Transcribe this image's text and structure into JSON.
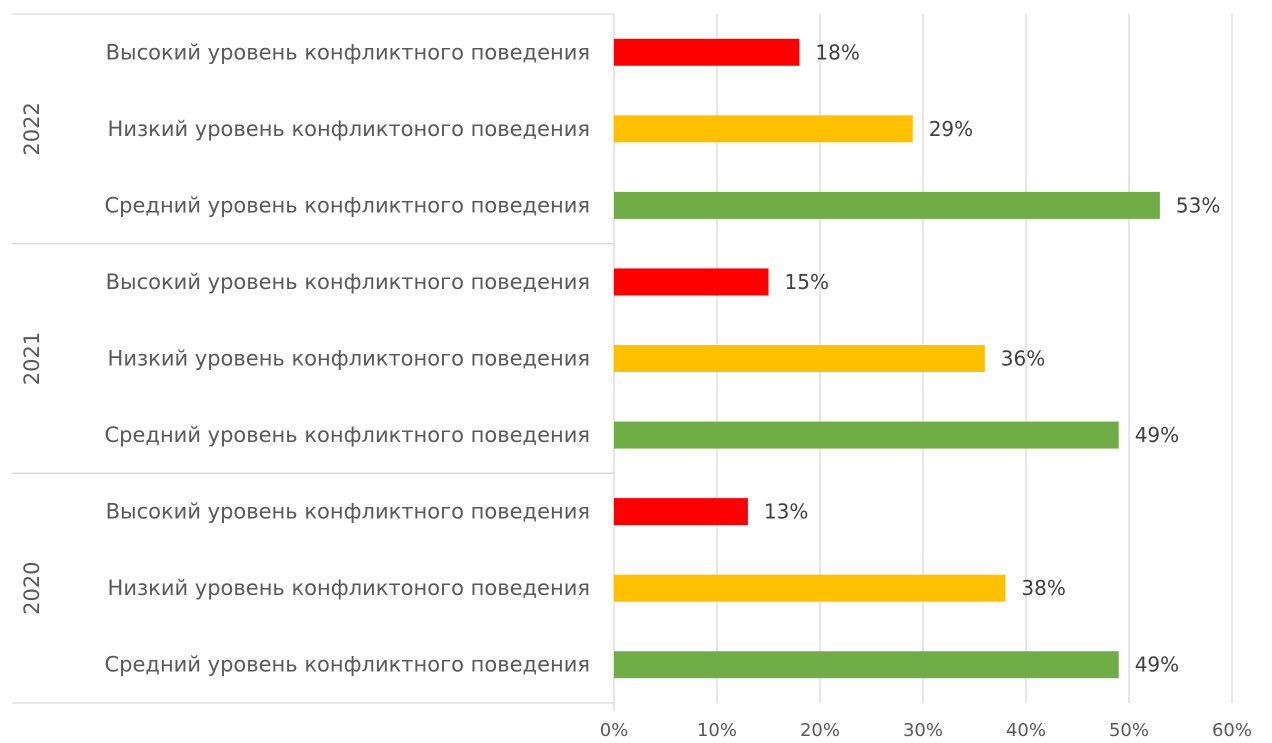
{
  "chart_data": {
    "type": "bar",
    "orientation": "horizontal",
    "xlim": [
      0,
      60
    ],
    "x_ticks": [
      "0%",
      "10%",
      "20%",
      "30%",
      "40%",
      "50%",
      "60%"
    ],
    "grid": true,
    "legend": "none",
    "groups": [
      {
        "name": "2022",
        "bars": [
          {
            "label": "Высокий уровень конфликтного поведения",
            "value": 18,
            "value_label": "18%",
            "color": "#ff0000"
          },
          {
            "label": "Низкий уровень конфликтоного поведения",
            "value": 29,
            "value_label": "29%",
            "color": "#ffc000"
          },
          {
            "label": "Средний уровень конфликтного поведения",
            "value": 53,
            "value_label": "53%",
            "color": "#70ad47"
          }
        ]
      },
      {
        "name": "2021",
        "bars": [
          {
            "label": "Высокий уровень конфликтного поведения",
            "value": 15,
            "value_label": "15%",
            "color": "#ff0000"
          },
          {
            "label": "Низкий уровень конфликтоного поведения",
            "value": 36,
            "value_label": "36%",
            "color": "#ffc000"
          },
          {
            "label": "Средний уровень конфликтного поведения",
            "value": 49,
            "value_label": "49%",
            "color": "#70ad47"
          }
        ]
      },
      {
        "name": "2020",
        "bars": [
          {
            "label": "Высокий уровень конфликтного поведения",
            "value": 13,
            "value_label": "13%",
            "color": "#ff0000"
          },
          {
            "label": "Низкий уровень конфликтоного поведения",
            "value": 38,
            "value_label": "38%",
            "color": "#ffc000"
          },
          {
            "label": "Средний уровень конфликтного поведения",
            "value": 49,
            "value_label": "49%",
            "color": "#70ad47"
          }
        ]
      }
    ]
  }
}
